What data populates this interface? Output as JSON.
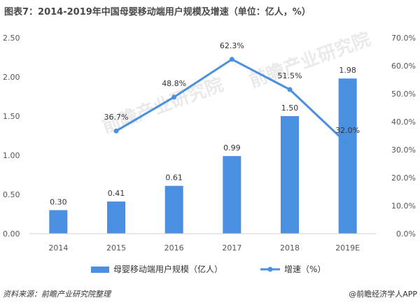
{
  "title": "图表7：2014-2019年中国母婴移动端用户规模及增速（单位：亿人，%）",
  "source": "资料来源：前瞻产业研究院整理",
  "brand": "@前瞻经济学人APP",
  "watermark": "前瞻产业研究院",
  "colors": {
    "bar": "#4a8fe0",
    "line": "#4a8fe0",
    "axis": "#d0d0d0"
  },
  "chart_data": {
    "type": "bar",
    "title": "2014-2019年中国母婴移动端用户规模及增速",
    "categories": [
      "2014",
      "2015",
      "2016",
      "2017",
      "2018",
      "2019E"
    ],
    "series": [
      {
        "name": "母婴移动端用户规模（亿人）",
        "type": "bar",
        "axis": "left",
        "values": [
          0.3,
          0.41,
          0.61,
          0.99,
          1.5,
          1.98
        ],
        "labels": [
          "0.30",
          "0.41",
          "0.61",
          "0.99",
          "1.50",
          "1.98"
        ]
      },
      {
        "name": "增速（%）",
        "type": "line",
        "axis": "right",
        "values": [
          null,
          36.7,
          48.8,
          62.3,
          51.5,
          32.0
        ],
        "labels": [
          "",
          "36.7%",
          "48.8%",
          "62.3%",
          "51.5%",
          "32.0%"
        ]
      }
    ],
    "ylim_left": [
      0,
      2.5
    ],
    "yticks_left": [
      "0.00",
      "0.50",
      "1.00",
      "1.50",
      "2.00",
      "2.50"
    ],
    "ylim_right": [
      0,
      70
    ],
    "yticks_right": [
      "0.0%",
      "10.0%",
      "20.0%",
      "30.0%",
      "40.0%",
      "50.0%",
      "60.0%",
      "70.0%"
    ],
    "legend_position": "bottom"
  }
}
